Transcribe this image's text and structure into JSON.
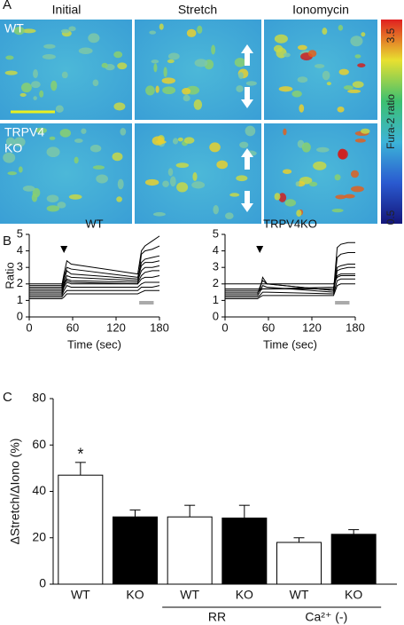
{
  "figure": {
    "panel_labels": [
      "A",
      "B",
      "C"
    ],
    "column_titles": [
      "Initial",
      "Stretch",
      "Ionomycin"
    ],
    "row_labels": [
      [
        "WT"
      ],
      [
        "TRPV4",
        "KO"
      ]
    ],
    "colorbar": {
      "label": "Fura-2 ratio",
      "lim": [
        0.5,
        3.5
      ],
      "ticks": [
        3.5,
        0.5
      ]
    }
  },
  "chart_data": [
    {
      "type": "line",
      "title": "WT",
      "xlabel": "Time (sec)",
      "ylabel": "Ratio",
      "x": [
        0,
        45,
        48,
        52,
        58,
        150,
        155,
        160,
        170,
        180
      ],
      "xlim": [
        0,
        180
      ],
      "xticks": [
        0,
        60,
        120,
        180
      ],
      "ylim": [
        0,
        5
      ],
      "yticks": [
        0,
        1,
        2,
        3,
        4,
        5
      ],
      "color": "#000000",
      "series": [
        {
          "values": [
            1.9,
            1.9,
            2.6,
            3.4,
            3.2,
            2.6,
            4.0,
            4.3,
            4.6,
            4.9
          ]
        },
        {
          "values": [
            1.8,
            1.8,
            2.4,
            3.0,
            2.9,
            2.4,
            3.3,
            3.5,
            3.6,
            3.7
          ]
        },
        {
          "values": [
            1.7,
            1.7,
            2.2,
            2.8,
            2.6,
            2.3,
            3.1,
            3.3,
            3.3,
            3.4
          ]
        },
        {
          "values": [
            1.6,
            1.6,
            2.0,
            2.5,
            2.4,
            2.2,
            2.8,
            3.0,
            3.0,
            3.1
          ]
        },
        {
          "values": [
            1.5,
            1.5,
            1.9,
            2.3,
            2.2,
            2.1,
            2.5,
            2.7,
            2.8,
            2.8
          ]
        },
        {
          "values": [
            1.4,
            1.4,
            1.8,
            2.1,
            2.0,
            2.0,
            2.3,
            2.4,
            2.4,
            2.5
          ]
        },
        {
          "values": [
            1.3,
            1.3,
            1.6,
            1.9,
            1.8,
            1.8,
            2.0,
            2.1,
            2.1,
            2.1
          ]
        },
        {
          "values": [
            1.2,
            1.2,
            1.4,
            1.6,
            1.6,
            1.6,
            1.8,
            1.8,
            1.8,
            1.9
          ]
        },
        {
          "values": [
            1.1,
            1.1,
            1.2,
            1.4,
            1.4,
            1.4,
            1.5,
            1.6,
            1.6,
            1.6
          ]
        },
        {
          "values": [
            2.0,
            2.0,
            2.1,
            2.2,
            2.1,
            2.0,
            3.8,
            4.0,
            4.1,
            4.3
          ]
        }
      ]
    },
    {
      "type": "line",
      "title": "TRPV4KO",
      "xlabel": "Time (sec)",
      "x": [
        0,
        45,
        48,
        52,
        58,
        150,
        155,
        160,
        170,
        180
      ],
      "xlim": [
        0,
        180
      ],
      "xticks": [
        0,
        60,
        120,
        180
      ],
      "ylim": [
        0,
        5
      ],
      "yticks": [
        0,
        1,
        2,
        3,
        4,
        5
      ],
      "color": "#000000",
      "series": [
        {
          "values": [
            1.5,
            1.5,
            1.6,
            2.4,
            2.0,
            1.6,
            4.2,
            4.4,
            4.5,
            4.5
          ]
        },
        {
          "values": [
            1.4,
            1.4,
            1.8,
            2.2,
            2.0,
            1.6,
            3.6,
            3.8,
            3.9,
            3.9
          ]
        },
        {
          "values": [
            1.6,
            1.6,
            1.6,
            1.7,
            1.7,
            1.7,
            3.0,
            3.1,
            3.2,
            3.2
          ]
        },
        {
          "values": [
            1.3,
            1.3,
            1.5,
            1.9,
            1.8,
            1.5,
            2.8,
            2.9,
            3.0,
            3.0
          ]
        },
        {
          "values": [
            1.7,
            1.7,
            1.7,
            1.7,
            1.7,
            1.8,
            2.5,
            2.6,
            2.6,
            2.6
          ]
        },
        {
          "values": [
            1.2,
            1.2,
            1.3,
            1.5,
            1.5,
            1.4,
            2.2,
            2.3,
            2.3,
            2.3
          ]
        },
        {
          "values": [
            1.1,
            1.1,
            1.2,
            1.3,
            1.3,
            1.3,
            1.9,
            2.0,
            2.0,
            2.0
          ]
        },
        {
          "values": [
            2.0,
            2.0,
            2.0,
            2.0,
            2.0,
            2.0,
            2.4,
            2.5,
            2.5,
            2.5
          ]
        }
      ]
    },
    {
      "type": "bar",
      "ylabel": "ΔStretch/ΔIono (%)",
      "categories": [
        "WT",
        "KO",
        "WT",
        "KO",
        "WT",
        "KO"
      ],
      "values": [
        47,
        29,
        29,
        28.5,
        18,
        21.5
      ],
      "errors": [
        5.5,
        3,
        5,
        5.5,
        2,
        2
      ],
      "colors": [
        "#ffffff",
        "#000000",
        "#ffffff",
        "#000000",
        "#ffffff",
        "#000000"
      ],
      "ylim": [
        0,
        80
      ],
      "yticks": [
        0,
        20,
        40,
        60,
        80
      ],
      "groups": [
        {
          "label": "RR"
        },
        {
          "label": "Ca²⁺ (-)"
        }
      ],
      "annotations": [
        {
          "text": "*"
        }
      ]
    }
  ]
}
